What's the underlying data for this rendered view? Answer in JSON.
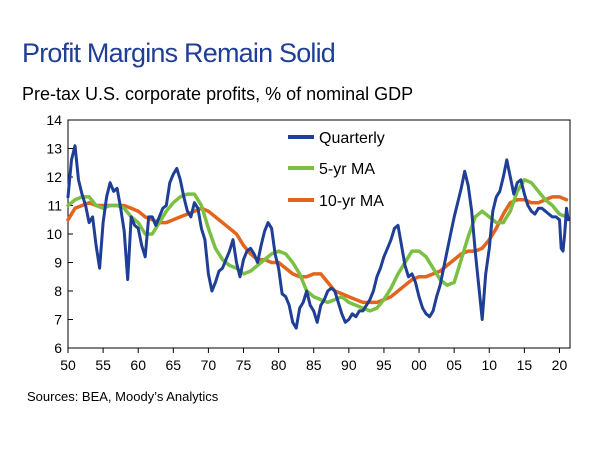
{
  "header": {
    "title": "Profit Margins Remain Solid",
    "subtitle": "Pre-tax U.S. corporate profits, % of nominal GDP"
  },
  "footer": {
    "source": "Sources: BEA, Moody’s Analytics"
  },
  "chart_data": {
    "type": "line",
    "title": "Profit Margins Remain Solid",
    "subtitle": "Pre-tax U.S. corporate profits, % of nominal GDP",
    "xlabel": "",
    "ylabel": "",
    "xlim": [
      1950,
      2021.5
    ],
    "ylim": [
      6,
      14
    ],
    "y_ticks": [
      6,
      7,
      8,
      9,
      10,
      11,
      12,
      13,
      14
    ],
    "x_ticks": [
      {
        "value": 1950,
        "label": "50"
      },
      {
        "value": 1955,
        "label": "55"
      },
      {
        "value": 1960,
        "label": "60"
      },
      {
        "value": 1965,
        "label": "65"
      },
      {
        "value": 1970,
        "label": "70"
      },
      {
        "value": 1975,
        "label": "75"
      },
      {
        "value": 1980,
        "label": "80"
      },
      {
        "value": 1985,
        "label": "85"
      },
      {
        "value": 1990,
        "label": "90"
      },
      {
        "value": 1995,
        "label": "95"
      },
      {
        "value": 2000,
        "label": "00"
      },
      {
        "value": 2005,
        "label": "05"
      },
      {
        "value": 2010,
        "label": "10"
      },
      {
        "value": 2015,
        "label": "15"
      },
      {
        "value": 2020,
        "label": "20"
      }
    ],
    "grid": false,
    "legend_position": "top-center",
    "series": [
      {
        "name": "Quarterly",
        "color": "#1f3f96",
        "x": [
          1950.0,
          1950.5,
          1951.0,
          1951.5,
          1952.0,
          1952.5,
          1953.0,
          1953.5,
          1954.0,
          1954.5,
          1955.0,
          1955.5,
          1956.0,
          1956.5,
          1957.0,
          1957.5,
          1958.0,
          1958.5,
          1959.0,
          1959.5,
          1960.0,
          1960.5,
          1961.0,
          1961.5,
          1962.0,
          1962.5,
          1963.0,
          1963.5,
          1964.0,
          1964.5,
          1965.0,
          1965.5,
          1966.0,
          1966.5,
          1967.0,
          1967.5,
          1968.0,
          1968.5,
          1969.0,
          1969.5,
          1970.0,
          1970.5,
          1971.0,
          1971.5,
          1972.0,
          1972.5,
          1973.0,
          1973.5,
          1974.0,
          1974.5,
          1975.0,
          1975.5,
          1976.0,
          1976.5,
          1977.0,
          1977.5,
          1978.0,
          1978.5,
          1979.0,
          1979.5,
          1980.0,
          1980.5,
          1981.0,
          1981.5,
          1982.0,
          1982.5,
          1983.0,
          1983.5,
          1984.0,
          1984.5,
          1985.0,
          1985.5,
          1986.0,
          1986.5,
          1987.0,
          1987.5,
          1988.0,
          1988.5,
          1989.0,
          1989.5,
          1990.0,
          1990.5,
          1991.0,
          1991.5,
          1992.0,
          1992.5,
          1993.0,
          1993.5,
          1994.0,
          1994.5,
          1995.0,
          1995.5,
          1996.0,
          1996.5,
          1997.0,
          1997.5,
          1998.0,
          1998.5,
          1999.0,
          1999.5,
          2000.0,
          2000.5,
          2001.0,
          2001.5,
          2002.0,
          2002.5,
          2003.0,
          2003.5,
          2004.0,
          2004.5,
          2005.0,
          2005.5,
          2006.0,
          2006.5,
          2007.0,
          2007.5,
          2008.0,
          2008.5,
          2009.0,
          2009.5,
          2010.0,
          2010.5,
          2011.0,
          2011.5,
          2012.0,
          2012.5,
          2013.0,
          2013.5,
          2014.0,
          2014.5,
          2015.0,
          2015.5,
          2016.0,
          2016.5,
          2017.0,
          2017.5,
          2018.0,
          2018.5,
          2019.0,
          2019.5,
          2020.0,
          2020.25,
          2020.5,
          2020.75,
          2021.0,
          2021.25
        ],
        "y": [
          11.3,
          12.6,
          13.1,
          11.9,
          11.4,
          11.0,
          10.4,
          10.6,
          9.6,
          8.8,
          10.4,
          11.3,
          11.8,
          11.5,
          11.6,
          10.9,
          10.1,
          8.4,
          10.6,
          10.3,
          10.2,
          9.6,
          9.2,
          10.6,
          10.6,
          10.3,
          10.6,
          10.9,
          11.0,
          11.8,
          12.1,
          12.3,
          11.9,
          11.3,
          10.8,
          10.6,
          11.1,
          10.9,
          10.2,
          9.8,
          8.6,
          8.0,
          8.3,
          8.7,
          8.8,
          9.1,
          9.4,
          9.8,
          9.0,
          8.5,
          9.1,
          9.4,
          9.5,
          9.3,
          9.0,
          9.6,
          10.1,
          10.4,
          10.2,
          9.3,
          8.8,
          7.9,
          7.8,
          7.5,
          6.9,
          6.7,
          7.4,
          7.6,
          8.0,
          7.5,
          7.3,
          6.9,
          7.5,
          7.7,
          8.0,
          8.1,
          8.0,
          7.6,
          7.2,
          6.9,
          7.0,
          7.2,
          7.1,
          7.3,
          7.3,
          7.5,
          7.7,
          8.0,
          8.5,
          8.8,
          9.2,
          9.5,
          9.8,
          10.2,
          10.3,
          9.6,
          8.9,
          8.5,
          8.6,
          8.3,
          7.8,
          7.4,
          7.2,
          7.1,
          7.3,
          7.8,
          8.2,
          8.8,
          9.4,
          10.0,
          10.6,
          11.1,
          11.6,
          12.2,
          11.7,
          10.8,
          9.4,
          8.2,
          7.0,
          8.6,
          9.5,
          10.8,
          11.3,
          11.5,
          12.0,
          12.6,
          12.0,
          11.4,
          11.8,
          11.9,
          11.4,
          11.0,
          10.8,
          10.7,
          10.9,
          10.9,
          10.8,
          10.7,
          10.6,
          10.6,
          10.5,
          9.5,
          9.4,
          10.0,
          10.9,
          10.5
        ]
      },
      {
        "name": "5-yr MA",
        "color": "#7ac043",
        "x": [
          1950.0,
          1951.0,
          1952.0,
          1953.0,
          1954.0,
          1955.0,
          1956.0,
          1957.0,
          1958.0,
          1959.0,
          1960.0,
          1961.0,
          1962.0,
          1963.0,
          1964.0,
          1965.0,
          1966.0,
          1967.0,
          1968.0,
          1969.0,
          1970.0,
          1971.0,
          1972.0,
          1973.0,
          1974.0,
          1975.0,
          1976.0,
          1977.0,
          1978.0,
          1979.0,
          1980.0,
          1981.0,
          1982.0,
          1983.0,
          1984.0,
          1985.0,
          1986.0,
          1987.0,
          1988.0,
          1989.0,
          1990.0,
          1991.0,
          1992.0,
          1993.0,
          1994.0,
          1995.0,
          1996.0,
          1997.0,
          1998.0,
          1999.0,
          2000.0,
          2001.0,
          2002.0,
          2003.0,
          2004.0,
          2005.0,
          2006.0,
          2007.0,
          2008.0,
          2009.0,
          2010.0,
          2011.0,
          2012.0,
          2013.0,
          2014.0,
          2015.0,
          2016.0,
          2017.0,
          2018.0,
          2019.0,
          2020.0,
          2021.0
        ],
        "y": [
          11.0,
          11.2,
          11.3,
          11.3,
          11.0,
          10.9,
          11.0,
          11.0,
          10.9,
          10.6,
          10.4,
          10.0,
          10.0,
          10.4,
          10.8,
          11.1,
          11.3,
          11.4,
          11.4,
          11.0,
          10.2,
          9.5,
          9.1,
          8.9,
          8.8,
          8.6,
          8.7,
          8.9,
          9.1,
          9.3,
          9.4,
          9.3,
          9.0,
          8.6,
          8.0,
          7.8,
          7.7,
          7.6,
          7.7,
          7.8,
          7.6,
          7.5,
          7.4,
          7.3,
          7.4,
          7.7,
          8.1,
          8.6,
          9.0,
          9.4,
          9.4,
          9.2,
          8.8,
          8.4,
          8.2,
          8.3,
          9.1,
          9.9,
          10.6,
          10.8,
          10.6,
          10.4,
          10.4,
          10.8,
          11.5,
          11.9,
          11.8,
          11.5,
          11.2,
          11.0,
          10.7,
          10.6
        ]
      },
      {
        "name": "10-yr MA",
        "color": "#e3651d",
        "x": [
          1950.0,
          1951.0,
          1952.0,
          1953.0,
          1954.0,
          1955.0,
          1956.0,
          1957.0,
          1958.0,
          1959.0,
          1960.0,
          1961.0,
          1962.0,
          1963.0,
          1964.0,
          1965.0,
          1966.0,
          1967.0,
          1968.0,
          1969.0,
          1970.0,
          1971.0,
          1972.0,
          1973.0,
          1974.0,
          1975.0,
          1976.0,
          1977.0,
          1978.0,
          1979.0,
          1980.0,
          1981.0,
          1982.0,
          1983.0,
          1984.0,
          1985.0,
          1986.0,
          1987.0,
          1988.0,
          1989.0,
          1990.0,
          1991.0,
          1992.0,
          1993.0,
          1994.0,
          1995.0,
          1996.0,
          1997.0,
          1998.0,
          1999.0,
          2000.0,
          2001.0,
          2002.0,
          2003.0,
          2004.0,
          2005.0,
          2006.0,
          2007.0,
          2008.0,
          2009.0,
          2010.0,
          2011.0,
          2012.0,
          2013.0,
          2014.0,
          2015.0,
          2016.0,
          2017.0,
          2018.0,
          2019.0,
          2020.0,
          2021.0
        ],
        "y": [
          10.5,
          10.9,
          11.0,
          11.1,
          11.0,
          11.0,
          11.0,
          11.0,
          11.0,
          10.9,
          10.8,
          10.6,
          10.5,
          10.4,
          10.4,
          10.5,
          10.6,
          10.7,
          10.8,
          10.9,
          10.8,
          10.6,
          10.4,
          10.2,
          10.0,
          9.6,
          9.3,
          9.1,
          9.1,
          9.0,
          9.0,
          8.8,
          8.6,
          8.5,
          8.5,
          8.6,
          8.6,
          8.3,
          8.0,
          7.9,
          7.8,
          7.7,
          7.6,
          7.6,
          7.6,
          7.7,
          7.8,
          8.0,
          8.2,
          8.4,
          8.5,
          8.5,
          8.6,
          8.7,
          8.9,
          9.1,
          9.3,
          9.4,
          9.4,
          9.5,
          9.8,
          10.2,
          10.7,
          11.1,
          11.2,
          11.2,
          11.1,
          11.1,
          11.2,
          11.3,
          11.3,
          11.2
        ]
      }
    ]
  }
}
